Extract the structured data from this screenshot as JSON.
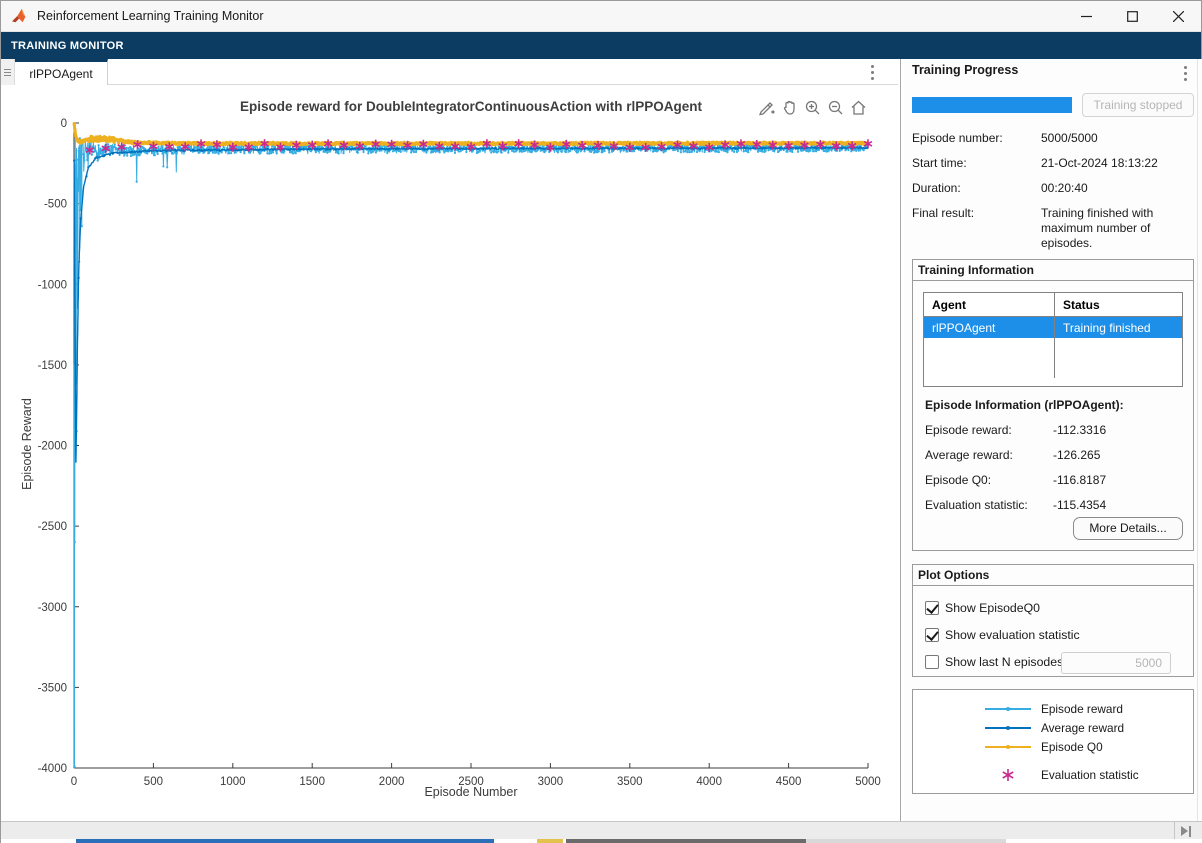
{
  "window": {
    "title": "Reinforcement Learning Training Monitor"
  },
  "ribbon": {
    "tab_label": "TRAINING MONITOR"
  },
  "doc_tab": {
    "label": "rlPPOAgent"
  },
  "colors": {
    "ribbon_navy": "#0c3c61",
    "accent_blue": "#1e8fe8",
    "episode_reward": "#35ade3",
    "average_reward": "#0072bd",
    "episode_q0": "#edb120",
    "evaluation": "#c92a8f",
    "axis": "#3c3c3c"
  },
  "chart_data": {
    "type": "line",
    "title": "Episode reward for DoubleIntegratorContinuousAction with rlPPOAgent",
    "xlabel": "Episode Number",
    "ylabel": "Episode Reward",
    "xlim": [
      0,
      5000
    ],
    "ylim": [
      -4000,
      0
    ],
    "xticks": [
      0,
      500,
      1000,
      1500,
      2000,
      2500,
      3000,
      3500,
      4000,
      4500,
      5000
    ],
    "yticks": [
      0,
      -500,
      -1000,
      -1500,
      -2000,
      -2500,
      -3000,
      -3500,
      -4000
    ],
    "grid": false,
    "axis_color": "#3c3c3c",
    "noise_seed": 7,
    "legend_position": "separate-panel-bottom-right",
    "series": [
      {
        "name": "Episode reward",
        "color": "#35ade3",
        "marker": "dot",
        "final_value": -112.3316,
        "step": 3,
        "width": 1,
        "dot_every": 2,
        "dot_r": 1.1,
        "base": [
          [
            1,
            -400
          ],
          [
            10,
            -300
          ],
          [
            30,
            -225
          ],
          [
            80,
            -188
          ],
          [
            200,
            -172
          ],
          [
            1000,
            -162
          ],
          [
            5000,
            -153
          ]
        ],
        "amp": [
          [
            1,
            330
          ],
          [
            10,
            260
          ],
          [
            30,
            150
          ],
          [
            80,
            72
          ],
          [
            200,
            42
          ],
          [
            600,
            30
          ],
          [
            5000,
            26
          ]
        ],
        "spikes": [
          [
            1,
            -3995
          ],
          [
            2,
            -1500
          ],
          [
            3,
            -3990
          ],
          [
            4,
            -700
          ],
          [
            5,
            -2600
          ],
          [
            7,
            -1100
          ],
          [
            9,
            -2050
          ],
          [
            11,
            -480
          ],
          [
            14,
            -1620
          ],
          [
            18,
            -760
          ],
          [
            22,
            -1150
          ],
          [
            27,
            -420
          ],
          [
            33,
            -860
          ],
          [
            41,
            -540
          ],
          [
            49,
            -640
          ]
        ],
        "dips": {
          "prob": 0.05,
          "max": 170,
          "until": 700
        }
      },
      {
        "name": "Average reward",
        "color": "#0072bd",
        "marker": "dot",
        "final_value": -126.265,
        "step": 4,
        "width": 1.4,
        "dot_every": 14,
        "dot_r": 1.2,
        "noise": 5,
        "base": [
          [
            1,
            -230
          ],
          [
            4,
            -850
          ],
          [
            8,
            -1500
          ],
          [
            12,
            -2100
          ],
          [
            16,
            -1850
          ],
          [
            22,
            -1350
          ],
          [
            30,
            -900
          ],
          [
            42,
            -600
          ],
          [
            60,
            -400
          ],
          [
            90,
            -280
          ],
          [
            140,
            -215
          ],
          [
            250,
            -186
          ],
          [
            500,
            -172
          ],
          [
            1500,
            -161
          ],
          [
            5000,
            -154
          ]
        ]
      },
      {
        "name": "Episode Q0",
        "color": "#edb120",
        "marker": "dot",
        "final_value": -116.8187,
        "step": 3,
        "width": 3,
        "dot_every": 5,
        "dot_r": 1.6,
        "base": [
          [
            1,
            -6
          ],
          [
            4,
            -30
          ],
          [
            8,
            -62
          ],
          [
            14,
            -92
          ],
          [
            25,
            -110
          ],
          [
            45,
            -118
          ],
          [
            70,
            -103
          ],
          [
            120,
            -97
          ],
          [
            200,
            -100
          ],
          [
            280,
            -112
          ],
          [
            400,
            -122
          ],
          [
            700,
            -127
          ],
          [
            2000,
            -127
          ],
          [
            5000,
            -125
          ]
        ],
        "amp": [
          [
            1,
            4
          ],
          [
            40,
            8
          ],
          [
            80,
            17
          ],
          [
            260,
            17
          ],
          [
            320,
            8
          ],
          [
            5000,
            7
          ]
        ]
      }
    ],
    "evaluation": {
      "name": "Evaluation statistic",
      "color": "#c92a8f",
      "marker": "asterisk",
      "final_value": -115.4354,
      "x_start": 100,
      "x_step": 100,
      "x_end": 5000,
      "base": -140,
      "noise": 12,
      "size": 4.5,
      "early": [
        [
          100,
          -168
        ],
        [
          200,
          -157
        ],
        [
          300,
          -149
        ]
      ]
    }
  },
  "axes_toolbar": {
    "buttons": [
      "export",
      "pan",
      "zoom-in",
      "zoom-out",
      "restore-view"
    ]
  },
  "progress_panel": {
    "header": "Training Progress",
    "stop_button_label": "Training stopped",
    "progress_percent": 100,
    "fields": [
      {
        "label": "Episode number:",
        "value": "5000/5000"
      },
      {
        "label": "Start time:",
        "value": "21-Oct-2024 18:13:22"
      },
      {
        "label": "Duration:",
        "value": "00:20:40"
      },
      {
        "label": "Final result:",
        "value": "Training finished with maximum number of episodes."
      }
    ]
  },
  "training_info": {
    "header": "Training Information",
    "table": {
      "columns": [
        "Agent",
        "Status"
      ],
      "rows": [
        {
          "agent": "rlPPOAgent",
          "status": "Training finished",
          "selected": true
        }
      ]
    },
    "episode_info_title": "Episode Information (rlPPOAgent):",
    "stats": [
      {
        "label": "Episode reward:",
        "value": "-112.3316"
      },
      {
        "label": "Average reward:",
        "value": "-126.265"
      },
      {
        "label": "Episode Q0:",
        "value": "-116.8187"
      },
      {
        "label": "Evaluation statistic:",
        "value": "-115.4354"
      }
    ],
    "more_details_label": "More Details..."
  },
  "plot_options": {
    "header": "Plot Options",
    "checkboxes": [
      {
        "label": "Show EpisodeQ0",
        "checked": true
      },
      {
        "label": "Show evaluation statistic",
        "checked": true
      },
      {
        "label": "Show last N episodes",
        "checked": false
      }
    ],
    "last_n_value": "5000"
  },
  "legend": {
    "entries": [
      {
        "label": "Episode reward",
        "color": "#35ade3",
        "marker": "line-dot"
      },
      {
        "label": "Average reward",
        "color": "#0072bd",
        "marker": "line-dot"
      },
      {
        "label": "Episode Q0",
        "color": "#edb120",
        "marker": "line-dot"
      },
      {
        "label": "Evaluation statistic",
        "color": "#c92a8f",
        "marker": "asterisk"
      }
    ]
  }
}
